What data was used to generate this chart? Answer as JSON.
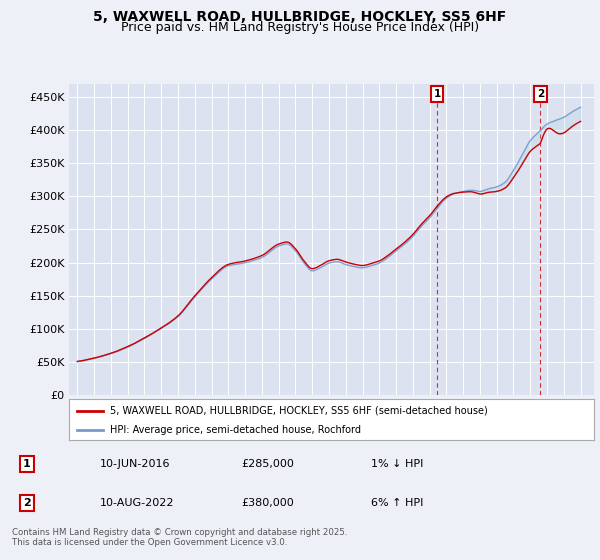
{
  "title": "5, WAXWELL ROAD, HULLBRIDGE, HOCKLEY, SS5 6HF",
  "subtitle": "Price paid vs. HM Land Registry's House Price Index (HPI)",
  "ylim": [
    0,
    470000
  ],
  "yticks": [
    0,
    50000,
    100000,
    150000,
    200000,
    250000,
    300000,
    350000,
    400000,
    450000
  ],
  "ytick_labels": [
    "£0",
    "£50K",
    "£100K",
    "£150K",
    "£200K",
    "£250K",
    "£300K",
    "£350K",
    "£400K",
    "£450K"
  ],
  "background_color": "#eef0f8",
  "plot_bg_color": "#dde2f0",
  "grid_color": "#ffffff",
  "line_color_red": "#cc0000",
  "line_color_blue": "#7799cc",
  "sale1_date": 2016.44,
  "sale1_price": 285000,
  "sale2_date": 2022.6,
  "sale2_price": 380000,
  "legend_entry1": "5, WAXWELL ROAD, HULLBRIDGE, HOCKLEY, SS5 6HF (semi-detached house)",
  "legend_entry2": "HPI: Average price, semi-detached house, Rochford",
  "table_row1": [
    "1",
    "10-JUN-2016",
    "£285,000",
    "1% ↓ HPI"
  ],
  "table_row2": [
    "2",
    "10-AUG-2022",
    "£380,000",
    "6% ↑ HPI"
  ],
  "footnote": "Contains HM Land Registry data © Crown copyright and database right 2025.\nThis data is licensed under the Open Government Licence v3.0.",
  "title_fontsize": 10,
  "subtitle_fontsize": 9
}
